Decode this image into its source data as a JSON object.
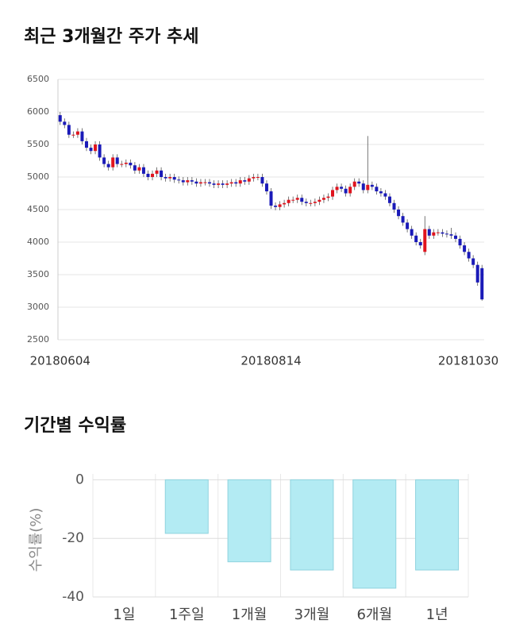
{
  "chart_data": [
    {
      "type": "candlestick",
      "title": "최근 3개월간 주가 추세",
      "categories": [
        "20180604",
        null,
        null,
        null,
        null,
        null,
        null,
        null,
        null,
        null,
        null,
        null,
        null,
        null,
        null,
        null,
        null,
        null,
        null,
        null,
        null,
        null,
        null,
        null,
        null,
        null,
        null,
        null,
        null,
        null,
        null,
        null,
        null,
        null,
        null,
        null,
        null,
        null,
        null,
        null,
        null,
        null,
        null,
        null,
        null,
        null,
        null,
        null,
        "20180814",
        null,
        null,
        null,
        null,
        null,
        null,
        null,
        null,
        null,
        null,
        null,
        null,
        null,
        null,
        null,
        null,
        null,
        null,
        null,
        null,
        null,
        null,
        null,
        null,
        null,
        null,
        null,
        null,
        null,
        null,
        null,
        null,
        null,
        null,
        null,
        null,
        null,
        null,
        null,
        null,
        null,
        null,
        null,
        null,
        null,
        null,
        null,
        "20181030"
      ],
      "open": [
        5950,
        5850,
        5800,
        5650,
        5650,
        5700,
        5550,
        5450,
        5400,
        5500,
        5300,
        5200,
        5150,
        5300,
        5200,
        5200,
        5220,
        5180,
        5100,
        5150,
        5050,
        5000,
        5050,
        5100,
        5000,
        4980,
        5000,
        4960,
        4950,
        4920,
        4950,
        4930,
        4900,
        4920,
        4920,
        4900,
        4880,
        4900,
        4880,
        4900,
        4920,
        4900,
        4950,
        4930,
        4980,
        5000,
        5000,
        4900,
        4780,
        4560,
        4540,
        4580,
        4600,
        4650,
        4650,
        4680,
        4620,
        4600,
        4600,
        4620,
        4650,
        4680,
        4700,
        4800,
        4850,
        4820,
        4750,
        4850,
        4930,
        4900,
        4800,
        4880,
        4850,
        4780,
        4750,
        4700,
        4600,
        4500,
        4400,
        4300,
        4200,
        4100,
        4000,
        3850,
        4200,
        4100,
        4150,
        4150,
        4130,
        4120,
        4100,
        4050,
        3950,
        3850,
        3750,
        3650,
        3600
      ],
      "high": [
        6000,
        5900,
        5850,
        5700,
        5750,
        5750,
        5600,
        5500,
        5550,
        5550,
        5350,
        5250,
        5350,
        5350,
        5250,
        5270,
        5270,
        5230,
        5200,
        5200,
        5100,
        5100,
        5150,
        5150,
        5050,
        5050,
        5050,
        5010,
        5000,
        5000,
        5000,
        4980,
        4970,
        4970,
        4970,
        4950,
        4950,
        4950,
        4950,
        4970,
        4970,
        5000,
        5000,
        5030,
        5050,
        5050,
        5050,
        4950,
        4830,
        4610,
        4630,
        4650,
        4700,
        4700,
        4730,
        4730,
        4670,
        4650,
        4670,
        4700,
        4730,
        4750,
        4850,
        4900,
        4900,
        4870,
        4900,
        4980,
        4980,
        4950,
        5630,
        4930,
        4900,
        4830,
        4800,
        4750,
        4650,
        4550,
        4450,
        4350,
        4250,
        4150,
        4050,
        4400,
        4250,
        4200,
        4200,
        4200,
        4180,
        4220,
        4150,
        4100,
        4000,
        3900,
        3800,
        3700,
        3650
      ],
      "low": [
        5800,
        5750,
        5600,
        5600,
        5600,
        5500,
        5400,
        5350,
        5350,
        5250,
        5150,
        5100,
        5100,
        5150,
        5150,
        5150,
        5130,
        5050,
        5050,
        5000,
        4950,
        4950,
        5000,
        4950,
        4930,
        4930,
        4910,
        4900,
        4870,
        4870,
        4880,
        4850,
        4850,
        4870,
        4850,
        4830,
        4830,
        4830,
        4830,
        4850,
        4850,
        4850,
        4880,
        4880,
        4930,
        4950,
        4850,
        4730,
        4510,
        4490,
        4490,
        4530,
        4550,
        4600,
        4600,
        4570,
        4550,
        4550,
        4550,
        4570,
        4600,
        4630,
        4650,
        4750,
        4770,
        4700,
        4700,
        4800,
        4850,
        4750,
        4750,
        4800,
        4730,
        4700,
        4650,
        4550,
        4450,
        4350,
        4250,
        4150,
        4050,
        3950,
        3900,
        3800,
        4050,
        4050,
        4100,
        4080,
        4070,
        4050,
        4000,
        3900,
        3800,
        3700,
        3600,
        3330,
        3100
      ],
      "close": [
        5850,
        5800,
        5650,
        5650,
        5700,
        5550,
        5450,
        5400,
        5500,
        5300,
        5200,
        5150,
        5300,
        5200,
        5200,
        5220,
        5180,
        5100,
        5150,
        5050,
        5000,
        5050,
        5100,
        5000,
        4980,
        5000,
        4960,
        4950,
        4920,
        4950,
        4930,
        4900,
        4920,
        4920,
        4900,
        4880,
        4900,
        4880,
        4900,
        4920,
        4900,
        4950,
        4930,
        4980,
        5000,
        5000,
        4900,
        4780,
        4560,
        4540,
        4580,
        4600,
        4650,
        4650,
        4680,
        4620,
        4600,
        4600,
        4620,
        4650,
        4680,
        4700,
        4800,
        4850,
        4820,
        4750,
        4850,
        4930,
        4900,
        4800,
        4880,
        4850,
        4780,
        4750,
        4700,
        4600,
        4500,
        4400,
        4300,
        4200,
        4100,
        4000,
        3950,
        4200,
        4100,
        4150,
        4150,
        4130,
        4120,
        4100,
        4050,
        3950,
        3850,
        3750,
        3650,
        3380,
        3120
      ],
      "up_color": "#e0141e",
      "down_color": "#1a1ab8",
      "ylim": [
        2500,
        6500
      ],
      "yticks": [
        2500,
        3000,
        3500,
        4000,
        4500,
        5000,
        5500,
        6000,
        6500
      ],
      "grid": true
    },
    {
      "type": "bar",
      "title": "기간별 수익률",
      "categories": [
        "1일",
        "1주일",
        "1개월",
        "3개월",
        "6개월",
        "1년"
      ],
      "values": [
        0,
        -18.3,
        -28,
        -30.8,
        -37,
        -30.8
      ],
      "color": "#b3ebf3",
      "edge_color": "#8fd3de",
      "y_label": "수익률(%)",
      "ylim": [
        -40,
        2
      ],
      "yticks": [
        0,
        -20,
        -40
      ],
      "grid": true
    }
  ]
}
